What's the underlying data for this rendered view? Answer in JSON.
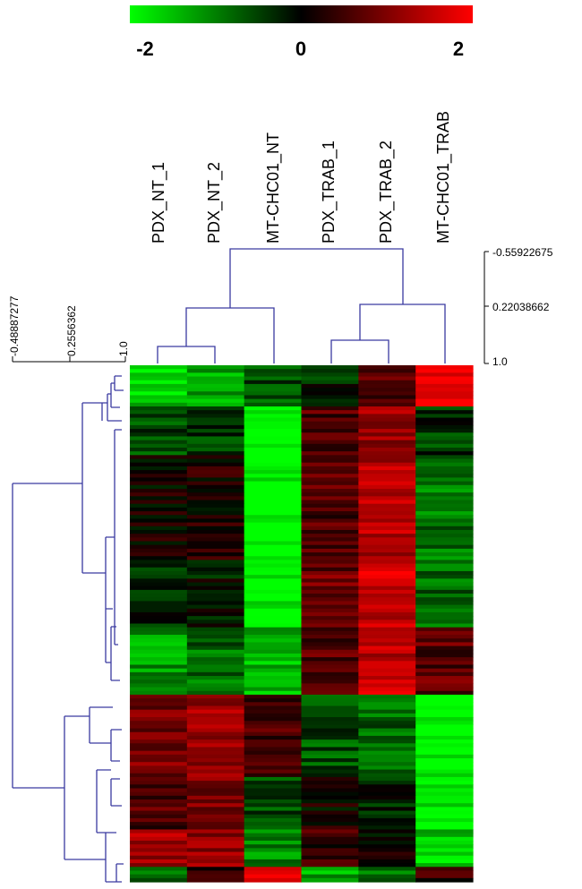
{
  "chart_data": {
    "type": "heatmap",
    "color_scale": {
      "min": -2,
      "mid": 0,
      "max": 2,
      "tick_labels": [
        "-2",
        "0",
        "2"
      ],
      "low_color": "#00ff00",
      "mid_color": "#000000",
      "high_color": "#ff0000"
    },
    "columns": [
      "PDX_NT_1",
      "PDX_NT_2",
      "MT-CHC01_NT",
      "PDX_TRAB_1",
      "PDX_TRAB_2",
      "MT-CHC01_TRAB"
    ],
    "column_dendrogram_axis": {
      "tick_labels": [
        "-0.55922675",
        "0.22038662",
        "1.0"
      ],
      "values": [
        -0.55922675,
        0.22038662,
        1.0
      ]
    },
    "row_dendrogram_axis": {
      "tick_labels": [
        "-0.48887277",
        "0.2556362",
        "1.0"
      ],
      "values": [
        -0.48887277,
        0.2556362,
        1.0
      ]
    },
    "row_blocks": [
      {
        "rows": 11,
        "values": [
          -1.6,
          -1.3,
          -0.6,
          -0.3,
          0.6,
          1.9
        ]
      },
      {
        "rows": 13,
        "values": [
          -0.5,
          -0.4,
          -2.0,
          0.6,
          1.2,
          -0.4
        ]
      },
      {
        "rows": 28,
        "values": [
          0.1,
          0.2,
          -2.0,
          0.6,
          1.4,
          -0.9
        ]
      },
      {
        "rows": 18,
        "values": [
          -0.2,
          -0.1,
          -1.9,
          0.8,
          1.6,
          -0.8
        ]
      },
      {
        "rows": 18,
        "values": [
          -1.2,
          -0.8,
          -1.4,
          0.6,
          1.5,
          0.7
        ]
      },
      {
        "rows": 22,
        "values": [
          0.9,
          1.2,
          0.5,
          -0.6,
          -0.8,
          -2.0
        ]
      },
      {
        "rows": 14,
        "values": [
          0.6,
          0.9,
          -0.6,
          0.1,
          -0.2,
          -1.8
        ]
      },
      {
        "rows": 10,
        "values": [
          1.3,
          1.1,
          -1.1,
          0.4,
          0.1,
          -1.6
        ]
      },
      {
        "rows": 4,
        "values": [
          -0.8,
          0.3,
          1.9,
          -1.3,
          -1.0,
          0.4
        ]
      }
    ]
  }
}
